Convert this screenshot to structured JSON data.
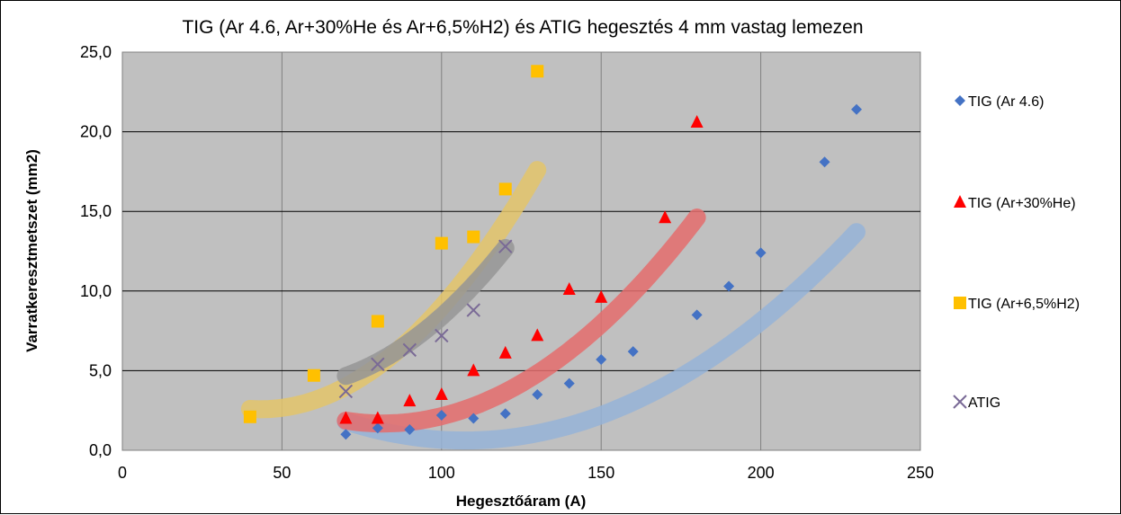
{
  "chart_data": {
    "type": "scatter",
    "title": "TIG  (Ar 4.6, Ar+30%He és Ar+6,5%H2) és ATIG  hegesztés 4 mm vastag lemezen",
    "xlabel": "Hegesztőáram (A)",
    "ylabel": "Varratkeresztmetszet (mm2)",
    "xlim": [
      0,
      250
    ],
    "ylim": [
      0,
      25
    ],
    "x_ticks": [
      "0",
      "50",
      "100",
      "150",
      "200",
      "250"
    ],
    "y_ticks": [
      "0,0",
      "5,0",
      "10,0",
      "15,0",
      "20,0",
      "25,0"
    ],
    "grid": true,
    "plot_background": "#c0c0c0",
    "legend_position": "right",
    "series": [
      {
        "name": "TIG (Ar 4.6)",
        "marker": "diamond",
        "color": "#4472c4",
        "trend_color": "#95b3d7",
        "x": [
          70,
          80,
          90,
          100,
          110,
          120,
          130,
          140,
          150,
          160,
          180,
          190,
          200,
          220,
          230
        ],
        "y": [
          1.0,
          1.4,
          1.3,
          2.2,
          2.0,
          2.3,
          3.5,
          4.2,
          5.7,
          6.2,
          8.5,
          10.3,
          12.4,
          18.1,
          21.4
        ]
      },
      {
        "name": "TIG (Ar+30%He)",
        "marker": "triangle",
        "color": "#ff0000",
        "trend_color": "#e46c6c",
        "x": [
          70,
          80,
          90,
          100,
          110,
          120,
          130,
          140,
          150,
          170,
          180
        ],
        "y": [
          2.0,
          2.0,
          3.1,
          3.5,
          5.0,
          6.1,
          7.2,
          10.1,
          9.6,
          14.6,
          20.6
        ]
      },
      {
        "name": "TIG (Ar+6,5%H2)",
        "marker": "square",
        "color": "#ffc000",
        "trend_color": "#e3c46a",
        "x": [
          40,
          60,
          80,
          100,
          110,
          120,
          130
        ],
        "y": [
          2.1,
          4.7,
          8.1,
          13.0,
          13.4,
          16.4,
          23.8
        ]
      },
      {
        "name": "ATIG",
        "marker": "x",
        "color": "#7a6a96",
        "trend_color": "#959595",
        "x": [
          70,
          80,
          90,
          100,
          110,
          120
        ],
        "y": [
          3.7,
          5.4,
          6.3,
          7.2,
          8.8,
          12.8
        ]
      }
    ],
    "trendlines": [
      {
        "series": "TIG (Ar 4.6)",
        "x_range": [
          70,
          230
        ],
        "coeffs": [
          0.000867,
          -0.1858,
          10.57
        ]
      },
      {
        "series": "TIG (Ar+30%He)",
        "x_range": [
          70,
          180
        ],
        "coeffs": [
          0.001333,
          -0.2173,
          10.54
        ]
      },
      {
        "series": "TIG (Ar+6,5%H2)",
        "x_range": [
          40,
          130
        ],
        "coeffs": [
          0.002,
          -0.1733,
          6.33
        ]
      },
      {
        "series": "ATIG",
        "x_range": [
          70,
          120
        ],
        "coeffs": [
          0.001814,
          -0.1839,
          8.65
        ]
      }
    ]
  }
}
